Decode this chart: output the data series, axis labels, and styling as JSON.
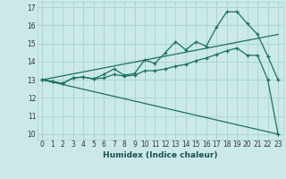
{
  "xlabel": "Humidex (Indice chaleur)",
  "background_color": "#cce9e9",
  "grid_color": "#aad4d4",
  "line_color": "#1a7060",
  "xlim": [
    -0.5,
    23.5
  ],
  "ylim": [
    9.7,
    17.3
  ],
  "yticks": [
    10,
    11,
    12,
    13,
    14,
    15,
    16,
    17
  ],
  "xticks": [
    0,
    1,
    2,
    3,
    4,
    5,
    6,
    7,
    8,
    9,
    10,
    11,
    12,
    13,
    14,
    15,
    16,
    17,
    18,
    19,
    20,
    21,
    22,
    23
  ],
  "line1_x": [
    0,
    1,
    2,
    3,
    4,
    5,
    6,
    7,
    8,
    9,
    10,
    11,
    12,
    13,
    14,
    15,
    16,
    17,
    18,
    19,
    20,
    21,
    22,
    23
  ],
  "line1_y": [
    13.0,
    12.9,
    12.8,
    13.1,
    13.15,
    13.05,
    13.3,
    13.6,
    13.25,
    13.35,
    14.1,
    13.9,
    14.5,
    15.1,
    14.65,
    15.1,
    14.85,
    15.9,
    16.75,
    16.75,
    16.1,
    15.5,
    14.3,
    13.0
  ],
  "line2_x": [
    0,
    1,
    2,
    3,
    4,
    5,
    6,
    7,
    8,
    9,
    10,
    11,
    12,
    13,
    14,
    15,
    16,
    17,
    18,
    19,
    20,
    21,
    22,
    23
  ],
  "line2_y": [
    13.0,
    12.9,
    12.8,
    13.1,
    13.15,
    13.05,
    13.1,
    13.3,
    13.2,
    13.25,
    13.5,
    13.5,
    13.6,
    13.75,
    13.85,
    14.05,
    14.2,
    14.4,
    14.6,
    14.75,
    14.35,
    14.35,
    13.0,
    10.0
  ],
  "line3_x": [
    0,
    23
  ],
  "line3_y": [
    13.0,
    15.5
  ],
  "line4_x": [
    0,
    23
  ],
  "line4_y": [
    13.0,
    10.0
  ]
}
